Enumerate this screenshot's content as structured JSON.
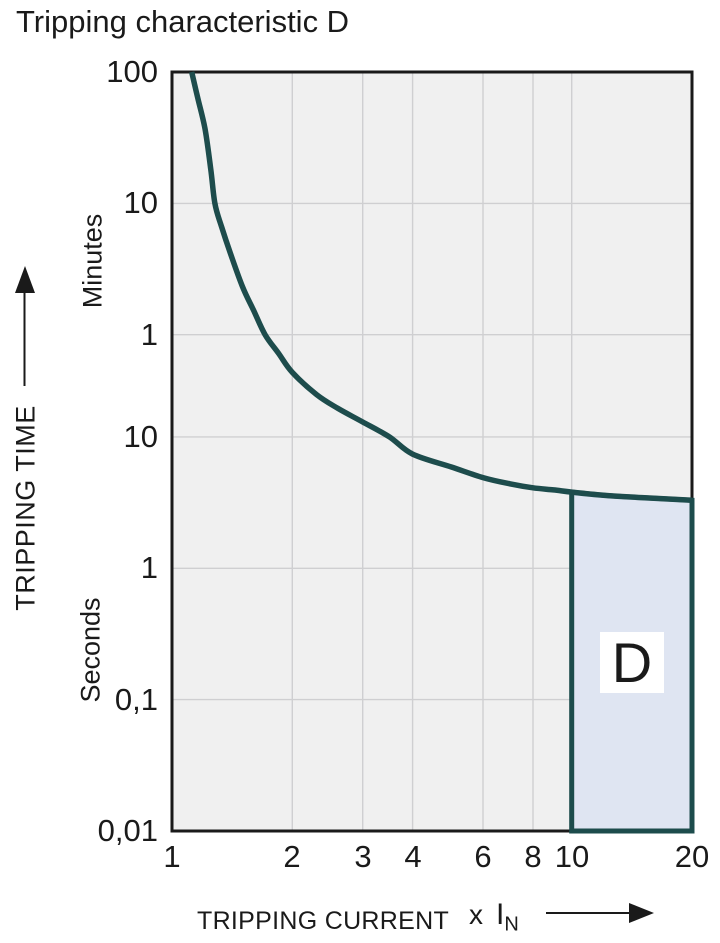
{
  "title": "Tripping characteristic D",
  "y_axis": {
    "title": "TRIPPING TIME",
    "unit_upper": "Minutes",
    "unit_lower": "Seconds",
    "ticks": [
      {
        "label": "100",
        "seconds": 6000
      },
      {
        "label": "10",
        "seconds": 600
      },
      {
        "label": "1",
        "seconds": 60
      },
      {
        "label": "10",
        "seconds": 10
      },
      {
        "label": "1",
        "seconds": 1
      },
      {
        "label": "0,1",
        "seconds": 0.1
      },
      {
        "label": "0,01",
        "seconds": 0.01
      }
    ]
  },
  "x_axis": {
    "title": "TRIPPING CURRENT",
    "multiplier_prefix": "x",
    "multiplier_base": "I",
    "multiplier_subscript": "N",
    "ticks": [
      {
        "label": "1",
        "value": 1
      },
      {
        "label": "2",
        "value": 2
      },
      {
        "label": "3",
        "value": 3
      },
      {
        "label": "4",
        "value": 4
      },
      {
        "label": "6",
        "value": 6
      },
      {
        "label": "8",
        "value": 8
      },
      {
        "label": "10",
        "value": 10
      },
      {
        "label": "20",
        "value": 20
      }
    ]
  },
  "region": {
    "label": "D"
  },
  "colors": {
    "curve": "#1d4c4c",
    "region_fill": "#dfe5f2",
    "region_border": "#1d4c4c",
    "plot_bg": "#f0f0f0",
    "gridline": "#cfcfd1",
    "axis_border": "#1a1a1a",
    "text": "#1a1a1a",
    "page_bg": "#ffffff"
  },
  "chart_data": {
    "type": "line",
    "title": "Tripping characteristic D",
    "xlabel": "TRIPPING CURRENT (x IN)",
    "ylabel": "TRIPPING TIME",
    "x_scale": "log",
    "y_scale": "log",
    "xlim": [
      1,
      20
    ],
    "ylim_seconds": [
      0.01,
      6000
    ],
    "x_ticks": [
      1,
      2,
      3,
      4,
      6,
      8,
      10,
      20
    ],
    "y_ticks_minutes": [
      100,
      10,
      1
    ],
    "y_ticks_seconds": [
      10,
      1,
      0.1,
      0.01
    ],
    "grid": true,
    "series": [
      {
        "name": "Tripping characteristic D curve",
        "points_multiple_vs_seconds": [
          [
            1.12,
            6000
          ],
          [
            1.16,
            3800
          ],
          [
            1.21,
            2200
          ],
          [
            1.25,
            1100
          ],
          [
            1.28,
            600
          ],
          [
            1.33,
            400
          ],
          [
            1.4,
            250
          ],
          [
            1.5,
            140
          ],
          [
            1.6,
            92
          ],
          [
            1.71,
            60
          ],
          [
            1.85,
            43
          ],
          [
            2.0,
            31
          ],
          [
            2.3,
            21
          ],
          [
            2.6,
            16.5
          ],
          [
            3.0,
            13
          ],
          [
            3.5,
            10
          ],
          [
            4.0,
            7.4
          ],
          [
            5.0,
            5.9
          ],
          [
            6.0,
            4.9
          ],
          [
            7.0,
            4.4
          ],
          [
            8.0,
            4.1
          ],
          [
            9.0,
            3.95
          ],
          [
            10.0,
            3.8
          ],
          [
            12.0,
            3.6
          ],
          [
            15.0,
            3.45
          ],
          [
            20.0,
            3.3
          ]
        ]
      }
    ],
    "region": {
      "label": "D",
      "x_from": 10,
      "x_to": 20,
      "bottom_seconds": 0.01,
      "top": "curve"
    }
  }
}
